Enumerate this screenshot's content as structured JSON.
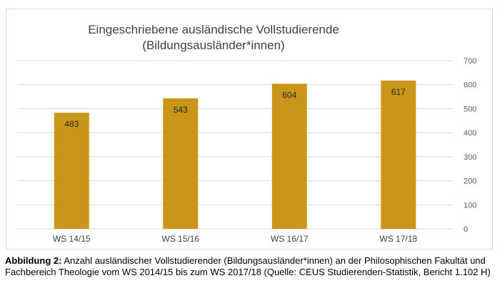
{
  "chart_data": {
    "type": "bar",
    "title_lines": [
      "Eingeschriebene ausländische Vollstudierende",
      "(Bildungsausländer*innen)"
    ],
    "categories": [
      "WS 14/15",
      "WS 15/16",
      "WS 16/17",
      "WS 17/18"
    ],
    "values": [
      483,
      543,
      604,
      617
    ],
    "data_labels": [
      "483",
      "543",
      "604",
      "617"
    ],
    "ylim": [
      0,
      700
    ],
    "yticks": [
      0,
      100,
      200,
      300,
      400,
      500,
      600,
      700
    ],
    "y_axis_side": "right",
    "grid": true,
    "bar_color": "#C9961A",
    "xlabel": "",
    "ylabel": ""
  },
  "caption": {
    "label": "Abbildung 2:",
    "text": " Anzahl ausländischer Vollstudierender (Bildungsausländer*innen) an der Philosophischen Fakultät und Fachbereich Theologie vom WS 2014/15 bis zum WS 2017/18 (Quelle: CEUS Studierenden-Statistik, Bericht 1.102 H)"
  }
}
